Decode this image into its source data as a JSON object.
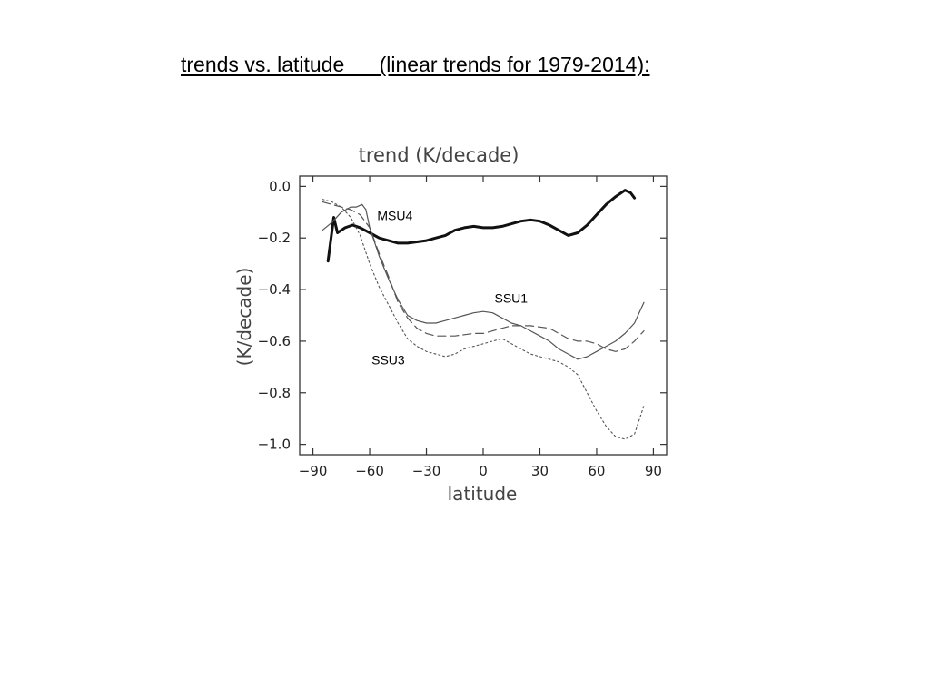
{
  "slide": {
    "title": "trends vs. latitude      (linear trends for 1979-2014):"
  },
  "chart_data": {
    "type": "line",
    "title": "trend (K/decade)",
    "xlabel": "latitude",
    "ylabel": "(K/decade)",
    "xlim": [
      -97,
      97
    ],
    "ylim": [
      -1.04,
      0.04
    ],
    "x_ticks": [
      -90,
      -60,
      -30,
      0,
      30,
      60,
      90
    ],
    "x_tick_labels": [
      "−90",
      "−60",
      "−30",
      "0",
      "30",
      "60",
      "90"
    ],
    "y_ticks": [
      0.0,
      -0.2,
      -0.4,
      -0.6,
      -0.8,
      -1.0
    ],
    "y_tick_labels": [
      "0.0",
      "−0.2",
      "−0.4",
      "−0.6",
      "−0.8",
      "−1.0"
    ],
    "grid": false,
    "series": [
      {
        "name": "MSU4",
        "style": "solid-thick",
        "x": [
          -82,
          -79,
          -77,
          -73,
          -69,
          -65,
          -60,
          -55,
          -50,
          -45,
          -40,
          -35,
          -30,
          -25,
          -20,
          -15,
          -10,
          -5,
          0,
          5,
          10,
          15,
          20,
          25,
          30,
          35,
          40,
          45,
          50,
          55,
          60,
          65,
          70,
          75,
          78,
          80
        ],
        "y": [
          -0.29,
          -0.12,
          -0.18,
          -0.16,
          -0.15,
          -0.16,
          -0.18,
          -0.2,
          -0.21,
          -0.22,
          -0.22,
          -0.215,
          -0.21,
          -0.2,
          -0.19,
          -0.17,
          -0.16,
          -0.155,
          -0.16,
          -0.16,
          -0.155,
          -0.145,
          -0.135,
          -0.13,
          -0.135,
          -0.15,
          -0.17,
          -0.19,
          -0.18,
          -0.15,
          -0.11,
          -0.07,
          -0.04,
          -0.015,
          -0.025,
          -0.045
        ]
      },
      {
        "name": "SSU1",
        "style": "solid-thin",
        "x": [
          -85,
          -80,
          -75,
          -70,
          -67,
          -64,
          -62,
          -60,
          -55,
          -50,
          -45,
          -40,
          -35,
          -30,
          -25,
          -20,
          -15,
          -10,
          -5,
          0,
          5,
          10,
          15,
          20,
          25,
          30,
          35,
          40,
          45,
          50,
          55,
          60,
          65,
          70,
          75,
          80,
          85
        ],
        "y": [
          -0.17,
          -0.14,
          -0.1,
          -0.08,
          -0.08,
          -0.07,
          -0.09,
          -0.16,
          -0.27,
          -0.36,
          -0.44,
          -0.5,
          -0.52,
          -0.53,
          -0.53,
          -0.52,
          -0.51,
          -0.5,
          -0.49,
          -0.485,
          -0.49,
          -0.51,
          -0.53,
          -0.54,
          -0.56,
          -0.58,
          -0.6,
          -0.63,
          -0.65,
          -0.67,
          -0.66,
          -0.64,
          -0.62,
          -0.6,
          -0.57,
          -0.53,
          -0.45
        ]
      },
      {
        "name": "",
        "style": "dashed",
        "x": [
          -85,
          -80,
          -75,
          -70,
          -65,
          -60,
          -55,
          -50,
          -45,
          -40,
          -35,
          -30,
          -25,
          -20,
          -15,
          -10,
          -5,
          0,
          5,
          10,
          15,
          20,
          25,
          30,
          35,
          40,
          45,
          50,
          55,
          60,
          65,
          70,
          75,
          80,
          85
        ],
        "y": [
          -0.06,
          -0.07,
          -0.08,
          -0.09,
          -0.11,
          -0.16,
          -0.26,
          -0.35,
          -0.45,
          -0.51,
          -0.55,
          -0.57,
          -0.58,
          -0.58,
          -0.58,
          -0.575,
          -0.57,
          -0.57,
          -0.56,
          -0.55,
          -0.54,
          -0.54,
          -0.54,
          -0.545,
          -0.55,
          -0.57,
          -0.59,
          -0.6,
          -0.6,
          -0.61,
          -0.63,
          -0.64,
          -0.63,
          -0.6,
          -0.56
        ]
      },
      {
        "name": "SSU3",
        "style": "dotted",
        "x": [
          -85,
          -80,
          -75,
          -70,
          -65,
          -60,
          -55,
          -50,
          -45,
          -40,
          -35,
          -30,
          -25,
          -20,
          -15,
          -10,
          -5,
          0,
          5,
          10,
          15,
          20,
          25,
          30,
          35,
          40,
          45,
          50,
          55,
          60,
          65,
          70,
          75,
          80,
          85
        ],
        "y": [
          -0.05,
          -0.06,
          -0.08,
          -0.12,
          -0.19,
          -0.3,
          -0.39,
          -0.46,
          -0.53,
          -0.59,
          -0.62,
          -0.64,
          -0.65,
          -0.66,
          -0.65,
          -0.63,
          -0.62,
          -0.61,
          -0.6,
          -0.59,
          -0.61,
          -0.63,
          -0.65,
          -0.66,
          -0.67,
          -0.68,
          -0.7,
          -0.73,
          -0.8,
          -0.87,
          -0.93,
          -0.97,
          -0.98,
          -0.96,
          -0.85
        ]
      }
    ],
    "annotations": [
      {
        "text": "MSU4",
        "x": -56,
        "y": -0.13
      },
      {
        "text": "SSU1",
        "x": 6,
        "y": -0.45
      },
      {
        "text": "SSU3",
        "x": -59,
        "y": -0.69
      }
    ]
  }
}
